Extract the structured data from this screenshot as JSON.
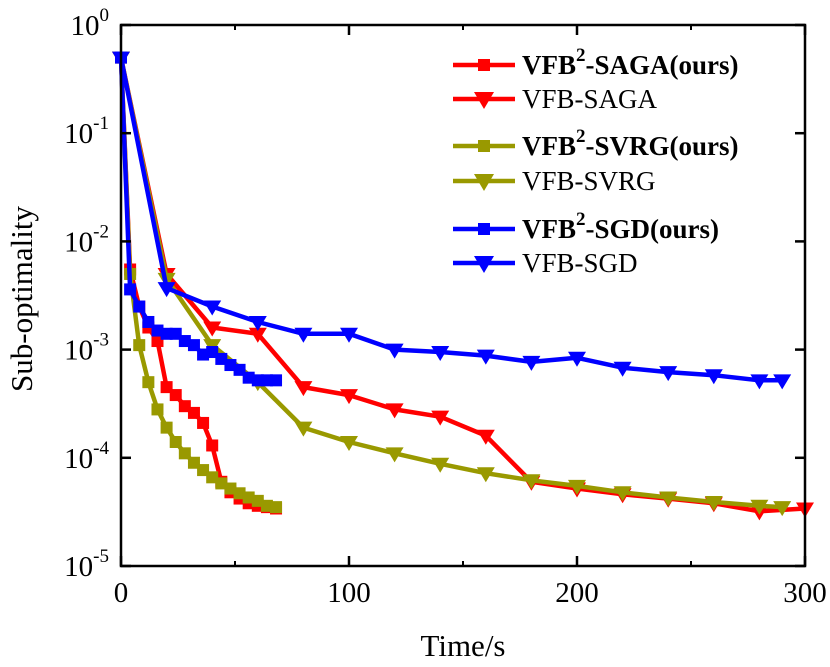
{
  "chart_data": {
    "type": "line",
    "title": "",
    "xlabel": "Time/s",
    "ylabel": "Sub-optimality",
    "xlim": [
      0,
      300
    ],
    "ylim_log10": [
      -5,
      0
    ],
    "y_scale": "log",
    "x_ticks": [
      0,
      100,
      200,
      300
    ],
    "x_tick_labels": [
      "0",
      "100",
      "200",
      "300"
    ],
    "y_ticks_log10": [
      0,
      -1,
      -2,
      -3,
      -4,
      -5
    ],
    "y_tick_labels": [
      {
        "base": "10",
        "exp": "0"
      },
      {
        "base": "10",
        "exp": "-1"
      },
      {
        "base": "10",
        "exp": "-2"
      },
      {
        "base": "10",
        "exp": "-3"
      },
      {
        "base": "10",
        "exp": "-4"
      },
      {
        "base": "10",
        "exp": "-5"
      }
    ],
    "legend_position": "top-right",
    "series": [
      {
        "name": "VFB2-SAGA(ours)",
        "label_main": "VFB",
        "label_sup": "2",
        "label_rest": "-SAGA(ours)",
        "bold": true,
        "color": "#ff0000",
        "marker": "square",
        "x": [
          0,
          4,
          8,
          12,
          16,
          20,
          24,
          28,
          32,
          36,
          40,
          44,
          48,
          52,
          56,
          60,
          64,
          68
        ],
        "y": [
          0.5,
          0.0055,
          0.0025,
          0.0016,
          0.0012,
          0.00045,
          0.00038,
          0.0003,
          0.00026,
          0.00021,
          0.00013,
          6e-05,
          4.8e-05,
          4.2e-05,
          3.8e-05,
          3.6e-05,
          3.5e-05,
          3.4e-05
        ]
      },
      {
        "name": "VFB-SAGA",
        "label_main": "VFB-SAGA",
        "label_sup": "",
        "label_rest": "",
        "bold": false,
        "color": "#ff0000",
        "marker": "triangle-down",
        "x": [
          0,
          20,
          40,
          60,
          80,
          100,
          120,
          140,
          160,
          180,
          200,
          220,
          240,
          260,
          280,
          300
        ],
        "y": [
          0.5,
          0.005,
          0.0016,
          0.0014,
          0.00045,
          0.00038,
          0.00028,
          0.00024,
          0.00016,
          6e-05,
          5.2e-05,
          4.6e-05,
          4.2e-05,
          3.8e-05,
          3.2e-05,
          3.4e-05
        ]
      },
      {
        "name": "VFB2-SVRG(ours)",
        "label_main": "VFB",
        "label_sup": "2",
        "label_rest": "-SVRG(ours)",
        "bold": true,
        "color": "#999900",
        "marker": "square",
        "x": [
          0,
          4,
          8,
          12,
          16,
          20,
          24,
          28,
          32,
          36,
          40,
          44,
          48,
          52,
          56,
          60,
          64,
          68
        ],
        "y": [
          0.5,
          0.005,
          0.0011,
          0.0005,
          0.00028,
          0.00019,
          0.00014,
          0.00011,
          9e-05,
          7.7e-05,
          6.6e-05,
          5.8e-05,
          5.2e-05,
          4.7e-05,
          4.3e-05,
          4e-05,
          3.6e-05,
          3.5e-05
        ]
      },
      {
        "name": "VFB-SVRG",
        "label_main": "VFB-SVRG",
        "label_sup": "",
        "label_rest": "",
        "bold": false,
        "color": "#999900",
        "marker": "triangle-down",
        "x": [
          0,
          20,
          40,
          60,
          80,
          100,
          120,
          140,
          160,
          180,
          200,
          220,
          240,
          260,
          280,
          290
        ],
        "y": [
          0.5,
          0.0045,
          0.0011,
          0.0005,
          0.00019,
          0.00014,
          0.00011,
          8.8e-05,
          7.2e-05,
          6.2e-05,
          5.5e-05,
          4.8e-05,
          4.3e-05,
          3.9e-05,
          3.6e-05,
          3.5e-05
        ]
      },
      {
        "name": "VFB2-SGD(ours)",
        "label_main": "VFB",
        "label_sup": "2",
        "label_rest": "-SGD(ours)",
        "bold": true,
        "color": "#0000ff",
        "marker": "square",
        "x": [
          0,
          4,
          8,
          12,
          16,
          20,
          24,
          28,
          32,
          36,
          40,
          44,
          48,
          52,
          56,
          60,
          64,
          68
        ],
        "y": [
          0.5,
          0.0036,
          0.0025,
          0.0018,
          0.0015,
          0.0014,
          0.0014,
          0.0012,
          0.0011,
          0.0009,
          0.00095,
          0.00082,
          0.00072,
          0.00065,
          0.00055,
          0.00052,
          0.00052,
          0.00052
        ]
      },
      {
        "name": "VFB-SGD",
        "label_main": "VFB-SGD",
        "label_sup": "",
        "label_rest": "",
        "bold": false,
        "color": "#0000ff",
        "marker": "triangle-down",
        "x": [
          0,
          20,
          40,
          60,
          80,
          100,
          120,
          140,
          160,
          180,
          200,
          220,
          240,
          260,
          280,
          290
        ],
        "y": [
          0.5,
          0.0037,
          0.0025,
          0.0018,
          0.0014,
          0.0014,
          0.001,
          0.00095,
          0.00088,
          0.00077,
          0.00084,
          0.00068,
          0.00062,
          0.00058,
          0.00052,
          0.00052
        ]
      }
    ]
  }
}
